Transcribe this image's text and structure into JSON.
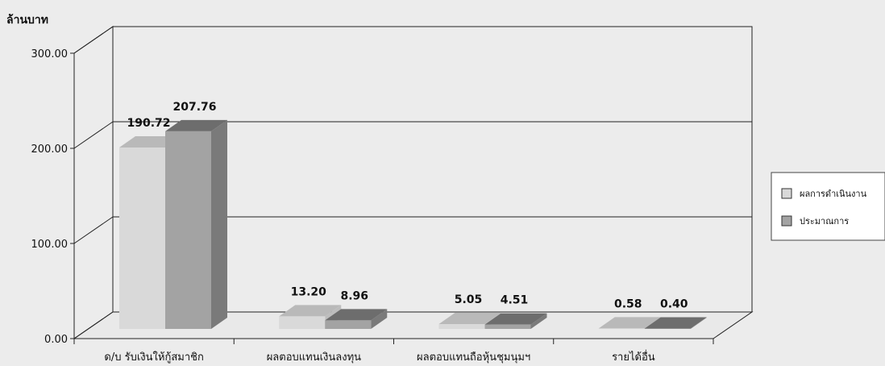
{
  "chart_data": {
    "type": "bar",
    "ylabel": "ล้านบาท",
    "ylim": [
      0,
      300
    ],
    "yticks": [
      "0.00",
      "100.00",
      "200.00",
      "300.00"
    ],
    "categories": [
      "ด/บ รับเงินให้กู้สมาชิก",
      "ผลตอบแทนเงินลงทุน",
      "ผลตอบแทนถือหุ้นชุมนุมฯ",
      "รายได้อื่น"
    ],
    "series": [
      {
        "name": "ผลการดำเนินงาน",
        "values": [
          190.72,
          13.2,
          5.05,
          0.58
        ],
        "labels": [
          "190.72",
          "13.20",
          "5.05",
          "0.58"
        ],
        "color_front": "#d9d9d9",
        "color_top": "#b9b9b9",
        "color_side": "#bdbdbd"
      },
      {
        "name": "ประมาณการ",
        "values": [
          207.76,
          8.96,
          4.51,
          0.4
        ],
        "labels": [
          "207.76",
          "8.96",
          "4.51",
          "0.40"
        ],
        "color_front": "#a3a3a3",
        "color_top": "#6d6d6d",
        "color_side": "#7a7a7a"
      }
    ],
    "grid": true,
    "legend_position": "right"
  }
}
